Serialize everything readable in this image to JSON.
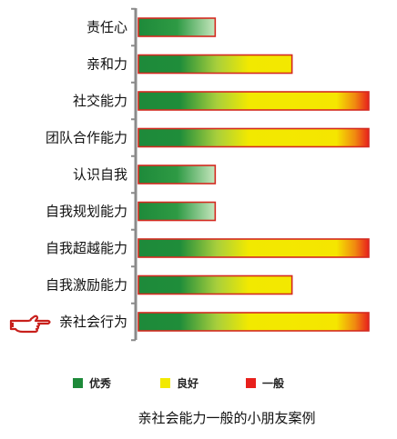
{
  "chart_data": {
    "type": "bar",
    "orientation": "horizontal",
    "categories": [
      "责任心",
      "亲和力",
      "社交能力",
      "团队合作能力",
      "认识自我",
      "自我规划能力",
      "自我超越能力",
      "自我激励能力",
      "亲社会行为"
    ],
    "values": [
      1,
      2,
      3,
      3,
      1,
      1,
      3,
      2,
      3
    ],
    "levels": [
      "优秀",
      "良好",
      "一般"
    ],
    "legend": [
      {
        "name": "优秀",
        "color": "#1e8a3a"
      },
      {
        "name": "良好",
        "color": "#f2e900"
      },
      {
        "name": "一般",
        "color": "#e8201c"
      }
    ],
    "legend_position": "bottom",
    "highlighted_category": "亲社会行为",
    "highlight_marker": "pointing-hand-icon",
    "caption": "亲社会能力一般的小朋友案例",
    "grid": false
  },
  "colors": {
    "excellent": "#1e8a3a",
    "good": "#f2e900",
    "average": "#e8201c",
    "bar_border": "#d42a20",
    "axis": "#8a8a8a",
    "hand": "#c8201c"
  }
}
